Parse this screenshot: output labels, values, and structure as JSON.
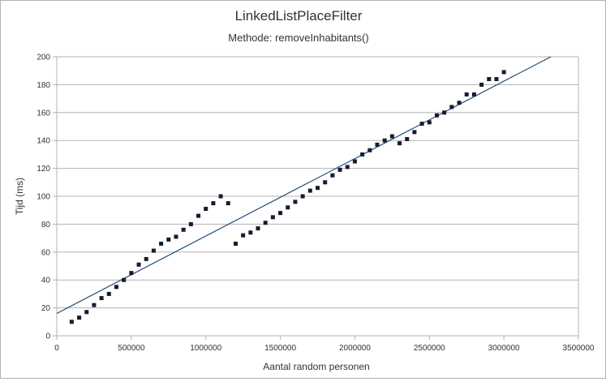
{
  "chart_data": {
    "type": "scatter",
    "title": "LinkedListPlaceFilter",
    "subtitle": "Methode: removeInhabitants()",
    "xlabel": "Aantal random personen",
    "ylabel": "Tijd (ms)",
    "xlim": [
      0,
      3500000
    ],
    "ylim": [
      0,
      200
    ],
    "x_ticks": [
      "0",
      "500000",
      "1000000",
      "1500000",
      "2000000",
      "2500000",
      "3000000",
      "3500000"
    ],
    "y_ticks": [
      "0",
      "20",
      "40",
      "60",
      "80",
      "100",
      "120",
      "140",
      "160",
      "180",
      "200"
    ],
    "x_tick_values": [
      0,
      500000,
      1000000,
      1500000,
      2000000,
      2500000,
      3000000,
      3500000
    ],
    "y_tick_values": [
      0,
      20,
      40,
      60,
      80,
      100,
      120,
      140,
      160,
      180,
      200
    ],
    "grid": "horizontal",
    "point_color": "#1a1a2e",
    "trendline_color": "#1f4e79",
    "series": [
      {
        "points": [
          [
            100000,
            10
          ],
          [
            150000,
            13
          ],
          [
            200000,
            17
          ],
          [
            250000,
            22
          ],
          [
            300000,
            27
          ],
          [
            350000,
            30
          ],
          [
            400000,
            35
          ],
          [
            450000,
            40
          ],
          [
            500000,
            45
          ],
          [
            550000,
            51
          ],
          [
            600000,
            55
          ],
          [
            650000,
            61
          ],
          [
            700000,
            66
          ],
          [
            750000,
            69
          ],
          [
            800000,
            71
          ],
          [
            850000,
            76
          ],
          [
            900000,
            80
          ],
          [
            950000,
            86
          ],
          [
            1000000,
            91
          ],
          [
            1050000,
            95
          ],
          [
            1100000,
            100
          ],
          [
            1150000,
            95
          ],
          [
            1200000,
            66
          ],
          [
            1250000,
            72
          ],
          [
            1300000,
            74
          ],
          [
            1350000,
            77
          ],
          [
            1400000,
            81
          ],
          [
            1450000,
            85
          ],
          [
            1500000,
            88
          ],
          [
            1550000,
            92
          ],
          [
            1600000,
            96
          ],
          [
            1650000,
            100
          ],
          [
            1700000,
            104
          ],
          [
            1750000,
            106
          ],
          [
            1800000,
            110
          ],
          [
            1850000,
            115
          ],
          [
            1900000,
            119
          ],
          [
            1950000,
            121
          ],
          [
            2000000,
            125
          ],
          [
            2050000,
            130
          ],
          [
            2100000,
            133
          ],
          [
            2150000,
            137
          ],
          [
            2200000,
            140
          ],
          [
            2250000,
            143
          ],
          [
            2300000,
            138
          ],
          [
            2350000,
            141
          ],
          [
            2400000,
            146
          ],
          [
            2450000,
            152
          ],
          [
            2500000,
            153
          ],
          [
            2550000,
            158
          ],
          [
            2600000,
            160
          ],
          [
            2650000,
            164
          ],
          [
            2700000,
            167
          ],
          [
            2750000,
            173
          ],
          [
            2800000,
            173
          ],
          [
            2850000,
            180
          ],
          [
            2900000,
            184
          ],
          [
            2950000,
            184
          ],
          [
            3000000,
            189
          ]
        ]
      }
    ],
    "trendline": {
      "x": [
        0,
        3315000
      ],
      "y": [
        16,
        200
      ]
    }
  }
}
